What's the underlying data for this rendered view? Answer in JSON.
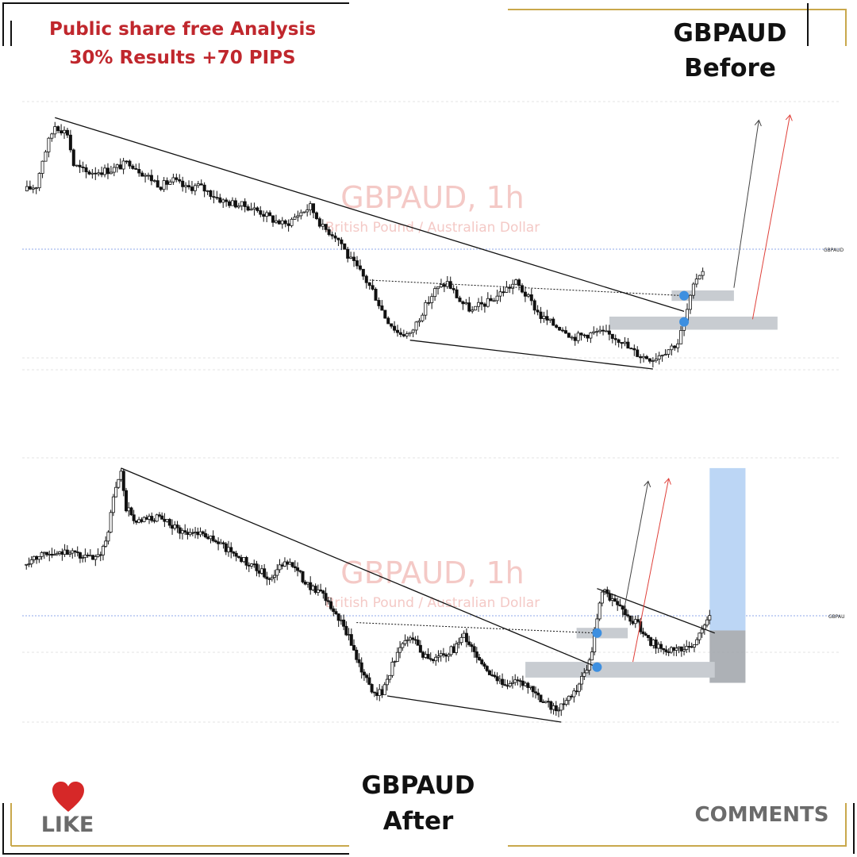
{
  "promo": {
    "line1": "Public share free Analysis",
    "line2": "30% Results +70 PIPS"
  },
  "labels": {
    "top_symbol": "GBPAUD",
    "top_when": "Before",
    "bottom_symbol": "GBPAUD",
    "bottom_when": "After",
    "like": "LIKE",
    "comments": "COMMENTS"
  },
  "icons": {
    "like": "heart-icon"
  },
  "colors": {
    "promo_red": "#c0272d",
    "gold_frame": "#c9a84c",
    "candle": "#111111",
    "zone_grey": "#c8ccd1",
    "level_dot": "#3d8fe0",
    "target_blue": "#bcd6f5",
    "stop_grey": "#9fa3a9",
    "projection_red": "#e0403a",
    "watermark": "#f4c9c6",
    "price_line": "#8fa8e8"
  },
  "chart_data": [
    {
      "type": "candlestick",
      "name": "Before",
      "watermark_title": "GBPAUD, 1h",
      "watermark_subtitle": "British Pound / Australian Dollar",
      "price_tag": "GBPAUD",
      "grid": true,
      "y_range": [
        0,
        100
      ],
      "close_path": [
        [
          0,
          68
        ],
        [
          2,
          70
        ],
        [
          3,
          80
        ],
        [
          4,
          87
        ],
        [
          5,
          93
        ],
        [
          7,
          90
        ],
        [
          8,
          78
        ],
        [
          10,
          75
        ],
        [
          14,
          76
        ],
        [
          17,
          79
        ],
        [
          19,
          75
        ],
        [
          22,
          70
        ],
        [
          24,
          72
        ],
        [
          26,
          69
        ],
        [
          28,
          70
        ],
        [
          30,
          67
        ],
        [
          32,
          64
        ],
        [
          34,
          63
        ],
        [
          36,
          62
        ],
        [
          38,
          60
        ],
        [
          40,
          57
        ],
        [
          42,
          55
        ],
        [
          44,
          59
        ],
        [
          46,
          62
        ],
        [
          47,
          58
        ],
        [
          48,
          54
        ],
        [
          50,
          51
        ],
        [
          51,
          48
        ],
        [
          52,
          43
        ],
        [
          54,
          37
        ],
        [
          56,
          30
        ],
        [
          58,
          20
        ],
        [
          60,
          14
        ],
        [
          62,
          13
        ],
        [
          64,
          22
        ],
        [
          66,
          30
        ],
        [
          68,
          33
        ],
        [
          70,
          26
        ],
        [
          72,
          22
        ],
        [
          73,
          24
        ],
        [
          75,
          26
        ],
        [
          77,
          30
        ],
        [
          79,
          33
        ],
        [
          81,
          27
        ],
        [
          83,
          20
        ],
        [
          85,
          17
        ],
        [
          87,
          15
        ],
        [
          88,
          12
        ],
        [
          90,
          13
        ],
        [
          92,
          14
        ],
        [
          94,
          13
        ],
        [
          96,
          11
        ],
        [
          97,
          8
        ],
        [
          99,
          5
        ],
        [
          101,
          4
        ],
        [
          103,
          7
        ],
        [
          105,
          10
        ],
        [
          106,
          18
        ],
        [
          107,
          27
        ],
        [
          108,
          35
        ],
        [
          109,
          38
        ]
      ],
      "trendlines": [
        {
          "from": [
            5,
            96
          ],
          "to": [
            106,
            22
          ]
        },
        {
          "from": [
            62,
            11
          ],
          "to": [
            101,
            0
          ]
        }
      ],
      "dotted_levels": [
        {
          "from": [
            55,
            34
          ],
          "to": [
            106,
            28
          ]
        }
      ],
      "zones": [
        {
          "x": [
            104,
            114
          ],
          "y": [
            26,
            30
          ]
        },
        {
          "x": [
            94,
            121
          ],
          "y": [
            15,
            20
          ]
        }
      ],
      "level_markers": [
        [
          106,
          28
        ],
        [
          106,
          18
        ]
      ],
      "projections": [
        {
          "color": "black",
          "from": [
            114,
            31
          ],
          "to": [
            118,
            95
          ]
        },
        {
          "color": "red",
          "from": [
            117,
            19
          ],
          "to": [
            123,
            97
          ]
        }
      ]
    },
    {
      "type": "candlestick",
      "name": "After",
      "watermark_title": "GBPAUD, 1h",
      "watermark_subtitle": "British Pound / Australian Dollar",
      "price_tag": "GBPAU",
      "grid": true,
      "y_range": [
        0,
        100
      ],
      "close_path": [
        [
          0,
          60
        ],
        [
          2,
          63
        ],
        [
          4,
          65
        ],
        [
          6,
          63
        ],
        [
          8,
          66
        ],
        [
          10,
          64
        ],
        [
          12,
          63
        ],
        [
          14,
          62
        ],
        [
          16,
          68
        ],
        [
          17,
          80
        ],
        [
          18,
          90
        ],
        [
          19,
          95
        ],
        [
          20,
          82
        ],
        [
          22,
          76
        ],
        [
          24,
          77
        ],
        [
          26,
          78
        ],
        [
          28,
          76
        ],
        [
          30,
          74
        ],
        [
          32,
          72
        ],
        [
          34,
          73
        ],
        [
          36,
          71
        ],
        [
          38,
          68
        ],
        [
          40,
          66
        ],
        [
          42,
          63
        ],
        [
          44,
          60
        ],
        [
          46,
          58
        ],
        [
          48,
          55
        ],
        [
          50,
          59
        ],
        [
          52,
          62
        ],
        [
          54,
          56
        ],
        [
          56,
          52
        ],
        [
          58,
          49
        ],
        [
          60,
          44
        ],
        [
          62,
          38
        ],
        [
          64,
          30
        ],
        [
          66,
          20
        ],
        [
          68,
          12
        ],
        [
          70,
          11
        ],
        [
          72,
          22
        ],
        [
          74,
          30
        ],
        [
          76,
          33
        ],
        [
          78,
          26
        ],
        [
          80,
          24
        ],
        [
          82,
          26
        ],
        [
          84,
          28
        ],
        [
          86,
          33
        ],
        [
          88,
          27
        ],
        [
          90,
          21
        ],
        [
          92,
          16
        ],
        [
          94,
          15
        ],
        [
          96,
          15
        ],
        [
          98,
          14
        ],
        [
          100,
          11
        ],
        [
          102,
          7
        ],
        [
          104,
          5
        ],
        [
          106,
          8
        ],
        [
          108,
          12
        ],
        [
          110,
          20
        ],
        [
          111,
          28
        ],
        [
          112,
          40
        ],
        [
          113,
          50
        ],
        [
          115,
          47
        ],
        [
          117,
          44
        ],
        [
          118,
          40
        ],
        [
          120,
          38
        ],
        [
          121,
          33
        ],
        [
          123,
          30
        ],
        [
          125,
          28
        ],
        [
          127,
          27
        ],
        [
          129,
          28
        ],
        [
          131,
          30
        ],
        [
          132,
          34
        ],
        [
          133,
          38
        ],
        [
          134,
          40
        ]
      ],
      "trendlines": [
        {
          "from": [
            19,
            97
          ],
          "to": [
            112,
            21
          ]
        },
        {
          "from": [
            71,
            10
          ],
          "to": [
            105,
            0
          ]
        },
        {
          "from": [
            112,
            51
          ],
          "to": [
            135,
            34
          ]
        }
      ],
      "dotted_levels": [
        {
          "from": [
            65,
            38
          ],
          "to": [
            112,
            34
          ]
        }
      ],
      "zones": [
        {
          "x": [
            108,
            118
          ],
          "y": [
            32,
            36
          ]
        },
        {
          "x": [
            98,
            135
          ],
          "y": [
            17,
            23
          ]
        }
      ],
      "level_markers": [
        [
          112,
          34
        ],
        [
          112,
          21
        ]
      ],
      "projections": [
        {
          "color": "black",
          "from": [
            117,
            40
          ],
          "to": [
            122,
            92
          ]
        },
        {
          "color": "red",
          "from": [
            119,
            23
          ],
          "to": [
            126,
            93
          ]
        }
      ],
      "position_box": {
        "x": [
          134,
          141
        ],
        "target_y": [
          35,
          97
        ],
        "stop_y": [
          15,
          35
        ]
      }
    }
  ]
}
